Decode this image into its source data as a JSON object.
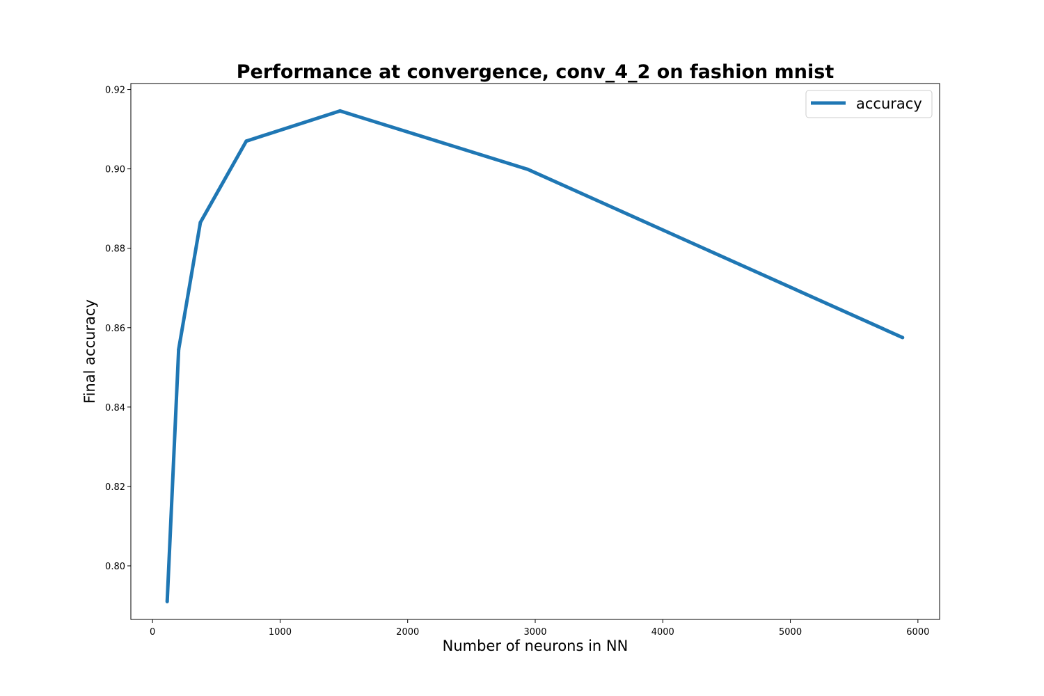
{
  "chart_data": {
    "type": "line",
    "title": "Performance at convergence, conv_4_2 on fashion mnist",
    "xlabel": "Number of neurons in NN",
    "ylabel": "Final accuracy",
    "xlim": [
      -170,
      6170
    ],
    "ylim": [
      0.7865,
      0.9215
    ],
    "xticks": [
      0,
      1000,
      2000,
      3000,
      4000,
      5000,
      6000
    ],
    "xtick_labels": [
      "0",
      "1000",
      "2000",
      "3000",
      "4000",
      "5000",
      "6000"
    ],
    "yticks": [
      0.8,
      0.82,
      0.84,
      0.86,
      0.88,
      0.9,
      0.92
    ],
    "ytick_labels": [
      "0.80",
      "0.82",
      "0.84",
      "0.86",
      "0.88",
      "0.90",
      "0.92"
    ],
    "grid": false,
    "legend_position": "top-right",
    "series": [
      {
        "name": "accuracy",
        "color": "#1f77b4",
        "x": [
          115,
          205,
          375,
          735,
          1470,
          2940,
          5880
        ],
        "y": [
          0.791,
          0.8545,
          0.8865,
          0.907,
          0.9146,
          0.8999,
          0.8575
        ]
      }
    ]
  }
}
